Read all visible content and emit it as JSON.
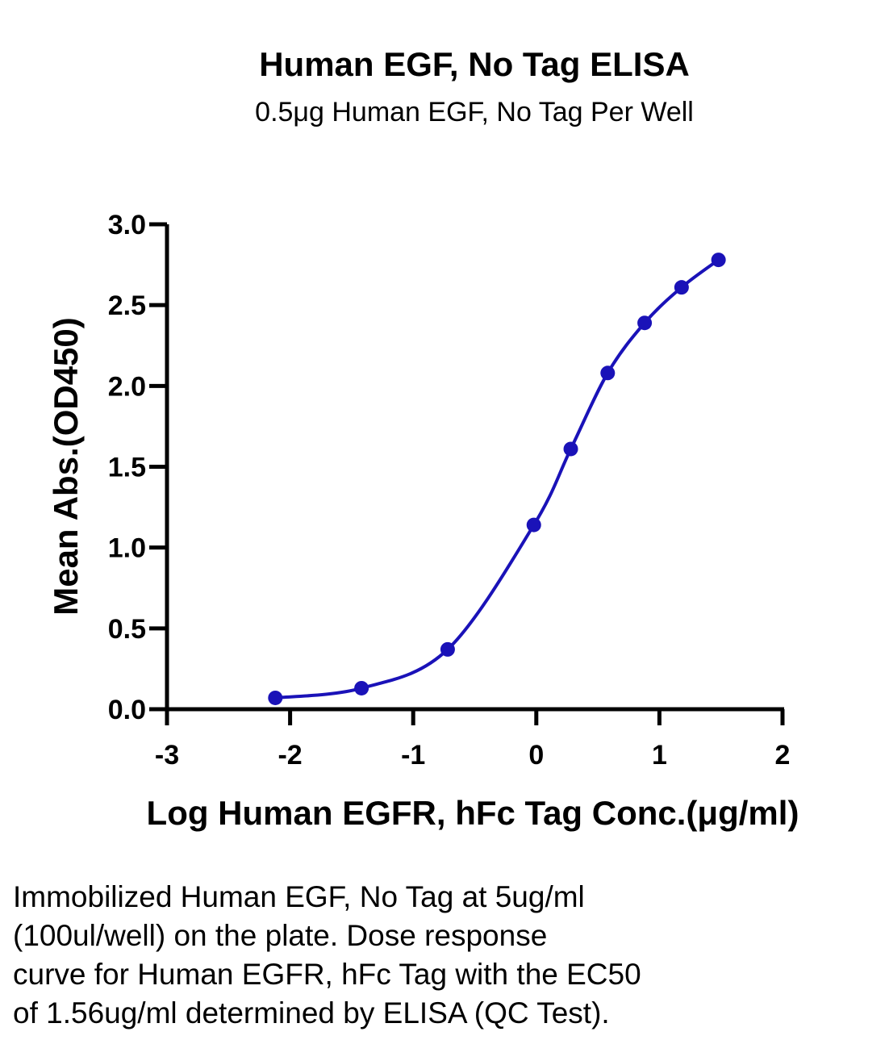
{
  "chart_data": {
    "type": "line",
    "title": "Human EGF, No Tag ELISA",
    "subtitle": "0.5μg Human EGF, No Tag Per Well",
    "xlabel": "Log Human EGFR, hFc Tag Conc.(μg/ml)",
    "ylabel": "Mean Abs.(OD450)",
    "xlim": [
      -3,
      2
    ],
    "ylim": [
      0,
      3.0
    ],
    "x_ticks": [
      -3,
      -2,
      -1,
      0,
      1,
      2
    ],
    "x_tick_labels": [
      "-3",
      "-2",
      "-1",
      "0",
      "1",
      "2"
    ],
    "y_ticks": [
      0,
      0.5,
      1.0,
      1.5,
      2.0,
      2.5,
      3.0
    ],
    "y_tick_labels": [
      "0.0",
      "0.5",
      "1.0",
      "1.5",
      "2.0",
      "2.5",
      "3.0"
    ],
    "grid": false,
    "series_color": "#1a12b8",
    "series": [
      {
        "x": [
          -2.12,
          -1.42,
          -0.72,
          -0.02,
          0.28,
          0.58,
          0.88,
          1.18,
          1.48
        ],
        "y": [
          0.07,
          0.13,
          0.37,
          1.14,
          1.61,
          2.08,
          2.39,
          2.61,
          2.78
        ]
      }
    ]
  },
  "caption": {
    "lines": [
      "Immobilized Human EGF, No Tag at 5ug/ml",
      "(100ul/well) on the plate. Dose response",
      "curve for Human EGFR, hFc Tag with the EC50",
      "of 1.56ug/ml determined by ELISA (QC Test)."
    ]
  }
}
